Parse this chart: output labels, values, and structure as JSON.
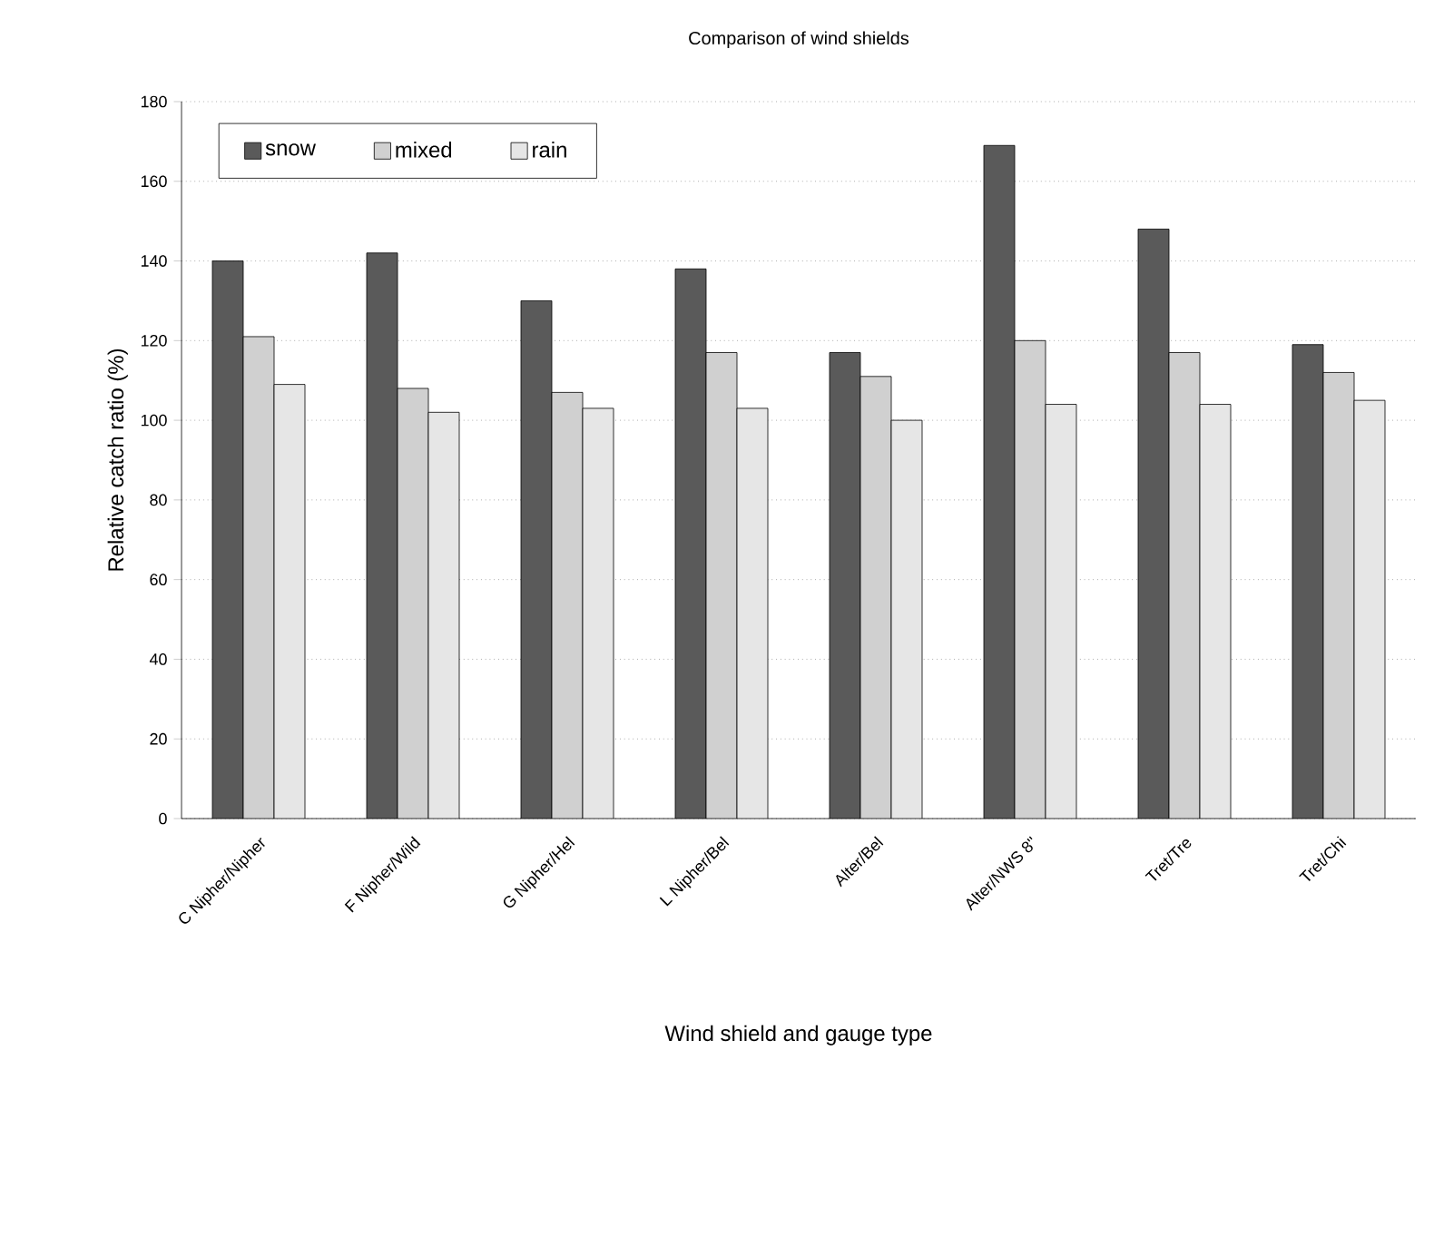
{
  "chart_data": {
    "type": "bar",
    "title": "Comparison of wind shields",
    "xlabel": "Wind shield and gauge type",
    "ylabel": "Relative catch ratio (%)",
    "categories": [
      "C Nipher/Nipher",
      "F Nipher/Wild",
      "G Nipher/Hel",
      "L Nipher/Bel",
      "Alter/Bel",
      "Alter/NWS 8\"",
      "Tret/Tre",
      "Tret/Chi"
    ],
    "series": [
      {
        "name": "snow",
        "color": "#5a5a5a",
        "values": [
          140,
          142,
          130,
          138,
          117,
          169,
          148,
          119
        ]
      },
      {
        "name": "mixed",
        "color": "#d0d0d0",
        "values": [
          121,
          108,
          107,
          117,
          111,
          120,
          117,
          112
        ]
      },
      {
        "name": "rain",
        "color": "#e6e6e6",
        "values": [
          109,
          102,
          103,
          103,
          100,
          104,
          104,
          105
        ]
      }
    ],
    "ylim": [
      0,
      180
    ],
    "yticks": [
      0,
      20,
      40,
      60,
      80,
      100,
      120,
      140,
      160,
      180
    ],
    "grid": "y",
    "legend": "top left"
  }
}
